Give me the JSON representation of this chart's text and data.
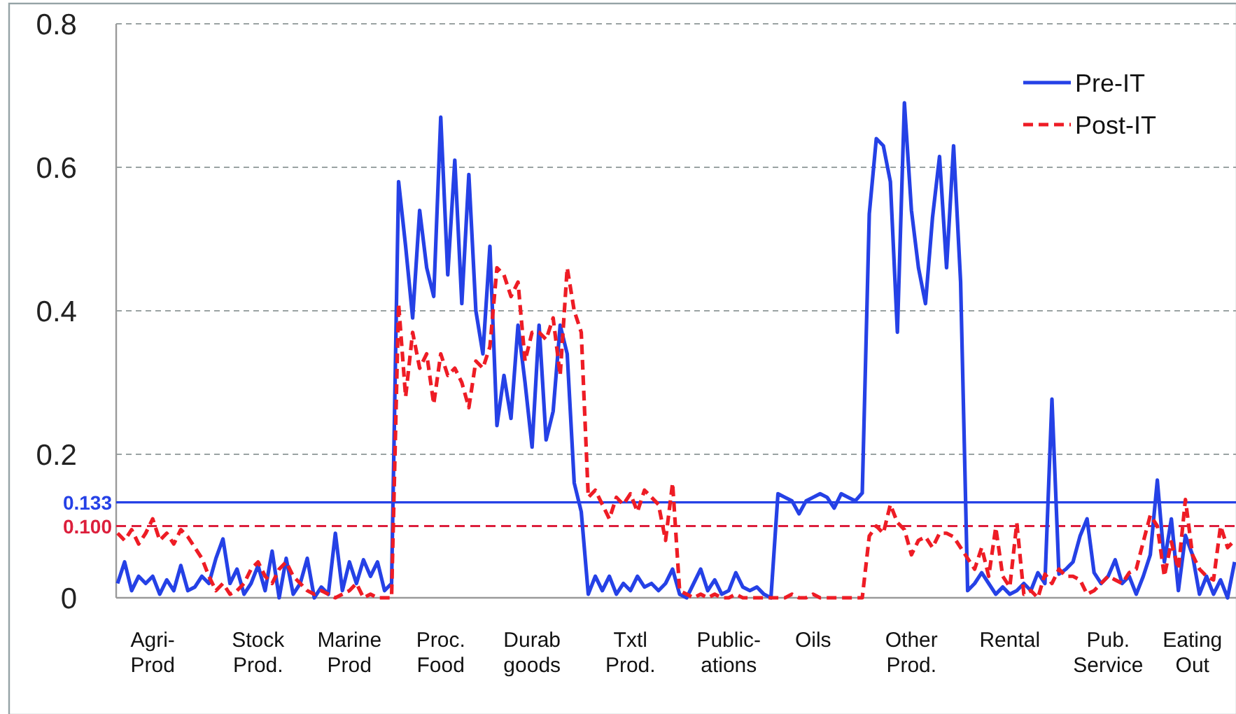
{
  "chart_data": {
    "type": "line",
    "categories": [
      null,
      null,
      null,
      null,
      null,
      "Agri-\nProd",
      null,
      null,
      null,
      null,
      null,
      null,
      null,
      null,
      null,
      null,
      null,
      null,
      null,
      null,
      "Stock\nProd.",
      null,
      null,
      null,
      null,
      null,
      null,
      null,
      null,
      null,
      null,
      null,
      null,
      "Marine\nProd",
      null,
      null,
      null,
      null,
      null,
      null,
      null,
      null,
      null,
      null,
      null,
      null,
      "Proc.\nFood",
      null,
      null,
      null,
      null,
      null,
      null,
      null,
      null,
      null,
      null,
      null,
      null,
      "Durab\ngoods",
      null,
      null,
      null,
      null,
      null,
      null,
      null,
      null,
      null,
      null,
      null,
      null,
      null,
      "Txtl\nProd.",
      null,
      null,
      null,
      null,
      null,
      null,
      null,
      null,
      null,
      null,
      null,
      null,
      null,
      "Public-\nations",
      null,
      null,
      null,
      null,
      null,
      null,
      null,
      null,
      null,
      null,
      null,
      "Oils",
      null,
      null,
      null,
      null,
      null,
      null,
      null,
      null,
      null,
      null,
      null,
      null,
      null,
      "Other\nProd.",
      null,
      null,
      null,
      null,
      null,
      null,
      null,
      null,
      null,
      null,
      null,
      null,
      null,
      "Rental",
      null,
      null,
      null,
      null,
      null,
      null,
      null,
      null,
      null,
      null,
      null,
      null,
      null,
      "Pub.\nService",
      null,
      null,
      null,
      null,
      null,
      null,
      null,
      null,
      null,
      null,
      null,
      "Eating\nOut",
      null,
      null,
      null,
      null,
      null,
      null
    ],
    "series": [
      {
        "name": "Pre-IT",
        "color": "#2541e6",
        "line_style": "solid",
        "values": [
          0.02,
          0.05,
          0.01,
          0.03,
          0.02,
          0.03,
          0.005,
          0.025,
          0.01,
          0.045,
          0.01,
          0.015,
          0.03,
          0.02,
          0.055,
          0.082,
          0.02,
          0.04,
          0.005,
          0.02,
          0.045,
          0.01,
          0.065,
          0.0,
          0.055,
          0.005,
          0.02,
          0.055,
          0.0,
          0.015,
          0.005,
          0.09,
          0.01,
          0.05,
          0.02,
          0.053,
          0.03,
          0.05,
          0.01,
          0.02,
          0.58,
          0.49,
          0.39,
          0.54,
          0.46,
          0.42,
          0.67,
          0.45,
          0.61,
          0.41,
          0.59,
          0.4,
          0.34,
          0.49,
          0.24,
          0.31,
          0.25,
          0.38,
          0.3,
          0.21,
          0.38,
          0.22,
          0.26,
          0.38,
          0.34,
          0.16,
          0.12,
          0.005,
          0.03,
          0.01,
          0.03,
          0.005,
          0.02,
          0.01,
          0.03,
          0.015,
          0.02,
          0.01,
          0.02,
          0.04,
          0.005,
          0.0,
          0.02,
          0.04,
          0.01,
          0.025,
          0.005,
          0.01,
          0.035,
          0.015,
          0.01,
          0.015,
          0.005,
          0.0,
          0.145,
          0.14,
          0.135,
          0.117,
          0.135,
          0.14,
          0.145,
          0.14,
          0.125,
          0.145,
          0.14,
          0.135,
          0.146,
          0.535,
          0.64,
          0.63,
          0.58,
          0.37,
          0.69,
          0.54,
          0.46,
          0.41,
          0.53,
          0.615,
          0.46,
          0.63,
          0.44,
          0.01,
          0.02,
          0.035,
          0.02,
          0.005,
          0.015,
          0.005,
          0.01,
          0.02,
          0.01,
          0.035,
          0.02,
          0.277,
          0.033,
          0.04,
          0.05,
          0.086,
          0.11,
          0.035,
          0.02,
          0.03,
          0.053,
          0.02,
          0.03,
          0.005,
          0.03,
          0.06,
          0.164,
          0.05,
          0.11,
          0.01,
          0.087,
          0.06,
          0.005,
          0.03,
          0.005,
          0.025,
          0.0,
          0.05
        ]
      },
      {
        "name": "Post-IT",
        "color": "#ee1c25",
        "line_style": "dashed",
        "values": [
          0.09,
          0.08,
          0.095,
          0.075,
          0.09,
          0.11,
          0.08,
          0.09,
          0.075,
          0.095,
          0.085,
          0.07,
          0.055,
          0.03,
          0.01,
          0.02,
          0.005,
          0.01,
          0.02,
          0.04,
          0.05,
          0.03,
          0.02,
          0.04,
          0.05,
          0.03,
          0.02,
          0.01,
          0.005,
          0.01,
          0.005,
          0.0,
          0.005,
          0.01,
          0.02,
          0.0,
          0.005,
          0.0,
          0.0,
          0.0,
          0.41,
          0.28,
          0.37,
          0.32,
          0.34,
          0.27,
          0.34,
          0.31,
          0.32,
          0.3,
          0.265,
          0.33,
          0.32,
          0.35,
          0.46,
          0.45,
          0.42,
          0.44,
          0.33,
          0.37,
          0.37,
          0.36,
          0.39,
          0.31,
          0.46,
          0.4,
          0.37,
          0.14,
          0.15,
          0.13,
          0.11,
          0.14,
          0.13,
          0.145,
          0.12,
          0.15,
          0.14,
          0.13,
          0.08,
          0.16,
          0.01,
          0.005,
          0.0,
          0.005,
          0.0,
          0.005,
          0.0,
          0.0,
          0.005,
          0.0,
          0.0,
          0.0,
          0.0,
          0.0,
          0.0,
          0.0,
          0.005,
          0.0,
          0.0,
          0.005,
          0.0,
          0.0,
          0.0,
          0.0,
          0.0,
          0.0,
          0.0,
          0.086,
          0.1,
          0.09,
          0.13,
          0.105,
          0.095,
          0.06,
          0.08,
          0.085,
          0.07,
          0.09,
          0.09,
          0.085,
          0.07,
          0.055,
          0.04,
          0.07,
          0.03,
          0.098,
          0.03,
          0.015,
          0.104,
          0.005,
          0.01,
          0.0,
          0.033,
          0.02,
          0.04,
          0.03,
          0.03,
          0.025,
          0.005,
          0.01,
          0.02,
          0.03,
          0.025,
          0.02,
          0.035,
          0.04,
          0.078,
          0.115,
          0.1,
          0.03,
          0.078,
          0.04,
          0.137,
          0.06,
          0.04,
          0.03,
          0.025,
          0.1,
          0.07,
          0.08
        ]
      }
    ],
    "ylim": [
      0,
      0.8
    ],
    "yticks": [
      0,
      0.2,
      0.4,
      0.6,
      0.8
    ],
    "grid": "y",
    "legend": "top right",
    "ref_lines": [
      {
        "axis": "y",
        "value": 0.133,
        "label": "0.133",
        "color": "#2541e6",
        "line_style": "solid"
      },
      {
        "axis": "y",
        "value": 0.1,
        "label": "0.100",
        "color": "#dc1f3c",
        "line_style": "dashed"
      }
    ]
  }
}
